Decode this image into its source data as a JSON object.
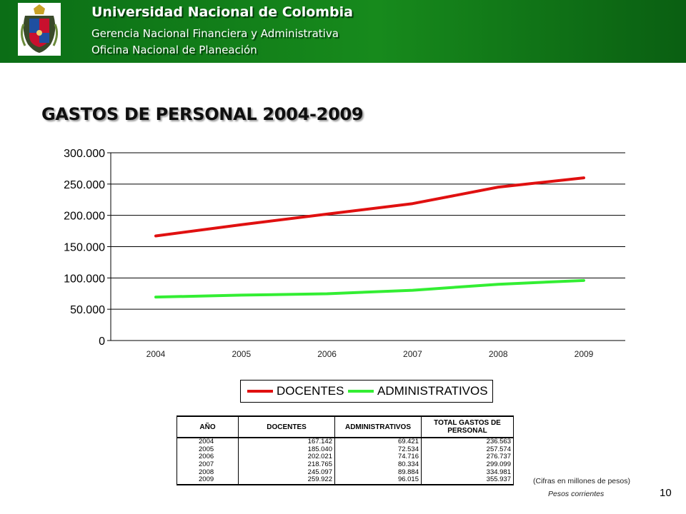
{
  "header": {
    "university": "Universidad Nacional de Colombia",
    "department": "Gerencia Nacional Financiera y Administrativa",
    "office": "Oficina Nacional de Planeación"
  },
  "colors": {
    "header_green": "#178a1c",
    "docentes_line": "#e01010",
    "administrativos_line": "#33ee33"
  },
  "title": "GASTOS DE PERSONAL 2004-2009",
  "chart_data": {
    "type": "line",
    "x": [
      "2004",
      "2005",
      "2006",
      "2007",
      "2008",
      "2009"
    ],
    "series": [
      {
        "name": "DOCENTES",
        "values": [
          167142,
          185040,
          202021,
          218765,
          245097,
          259922
        ]
      },
      {
        "name": "ADMINISTRATIVOS",
        "values": [
          69421,
          72534,
          74716,
          80334,
          89884,
          96015
        ]
      }
    ],
    "yticks": [
      "0",
      "50.000",
      "100.000",
      "150.000",
      "200.000",
      "250.000",
      "300.000"
    ],
    "ylim": [
      0,
      300000
    ],
    "grid": true,
    "legend": "bottom"
  },
  "table": {
    "headers": [
      "AÑO",
      "DOCENTES",
      "ADMINISTRATIVOS",
      "TOTAL GASTOS DE PERSONAL"
    ],
    "rows": [
      [
        "2004",
        "167.142",
        "69.421",
        "236.563"
      ],
      [
        "2005",
        "185.040",
        "72.534",
        "257.574"
      ],
      [
        "2006",
        "202.021",
        "74.716",
        "276.737"
      ],
      [
        "2007",
        "218.765",
        "80.334",
        "299.099"
      ],
      [
        "2008",
        "245.097",
        "89.884",
        "334.981"
      ],
      [
        "2009",
        "259.922",
        "96.015",
        "355.937"
      ]
    ]
  },
  "notes": {
    "units": "(Cifras en millones de pesos)",
    "prices": "Pesos corrientes"
  },
  "page_number": "10"
}
